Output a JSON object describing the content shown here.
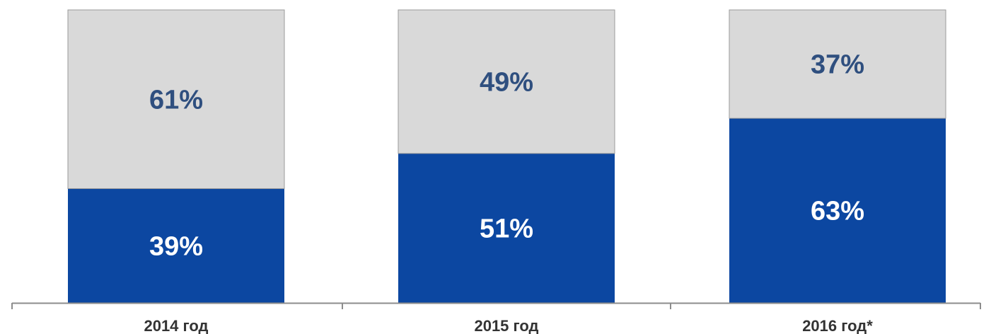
{
  "chart_data": {
    "type": "bar",
    "stacked": true,
    "categories": [
      "2014 год",
      "2015 год",
      "2016 год*"
    ],
    "series": [
      {
        "values": [
          39,
          51,
          63
        ],
        "labels": [
          "39%",
          "51%",
          "63%"
        ]
      },
      {
        "values": [
          61,
          49,
          37
        ],
        "labels": [
          "61%",
          "49%",
          "37%"
        ]
      }
    ],
    "ylim": [
      0,
      100
    ],
    "grid": false,
    "legend": "none",
    "colors": {
      "series_0": "#0c47a1",
      "series_1": "#d9d9d9",
      "label_on_dark": "#ffffff",
      "label_on_light": "#2f4f7f",
      "axis": "#8c8c8c",
      "bar_border": "#9a9a9a"
    }
  }
}
